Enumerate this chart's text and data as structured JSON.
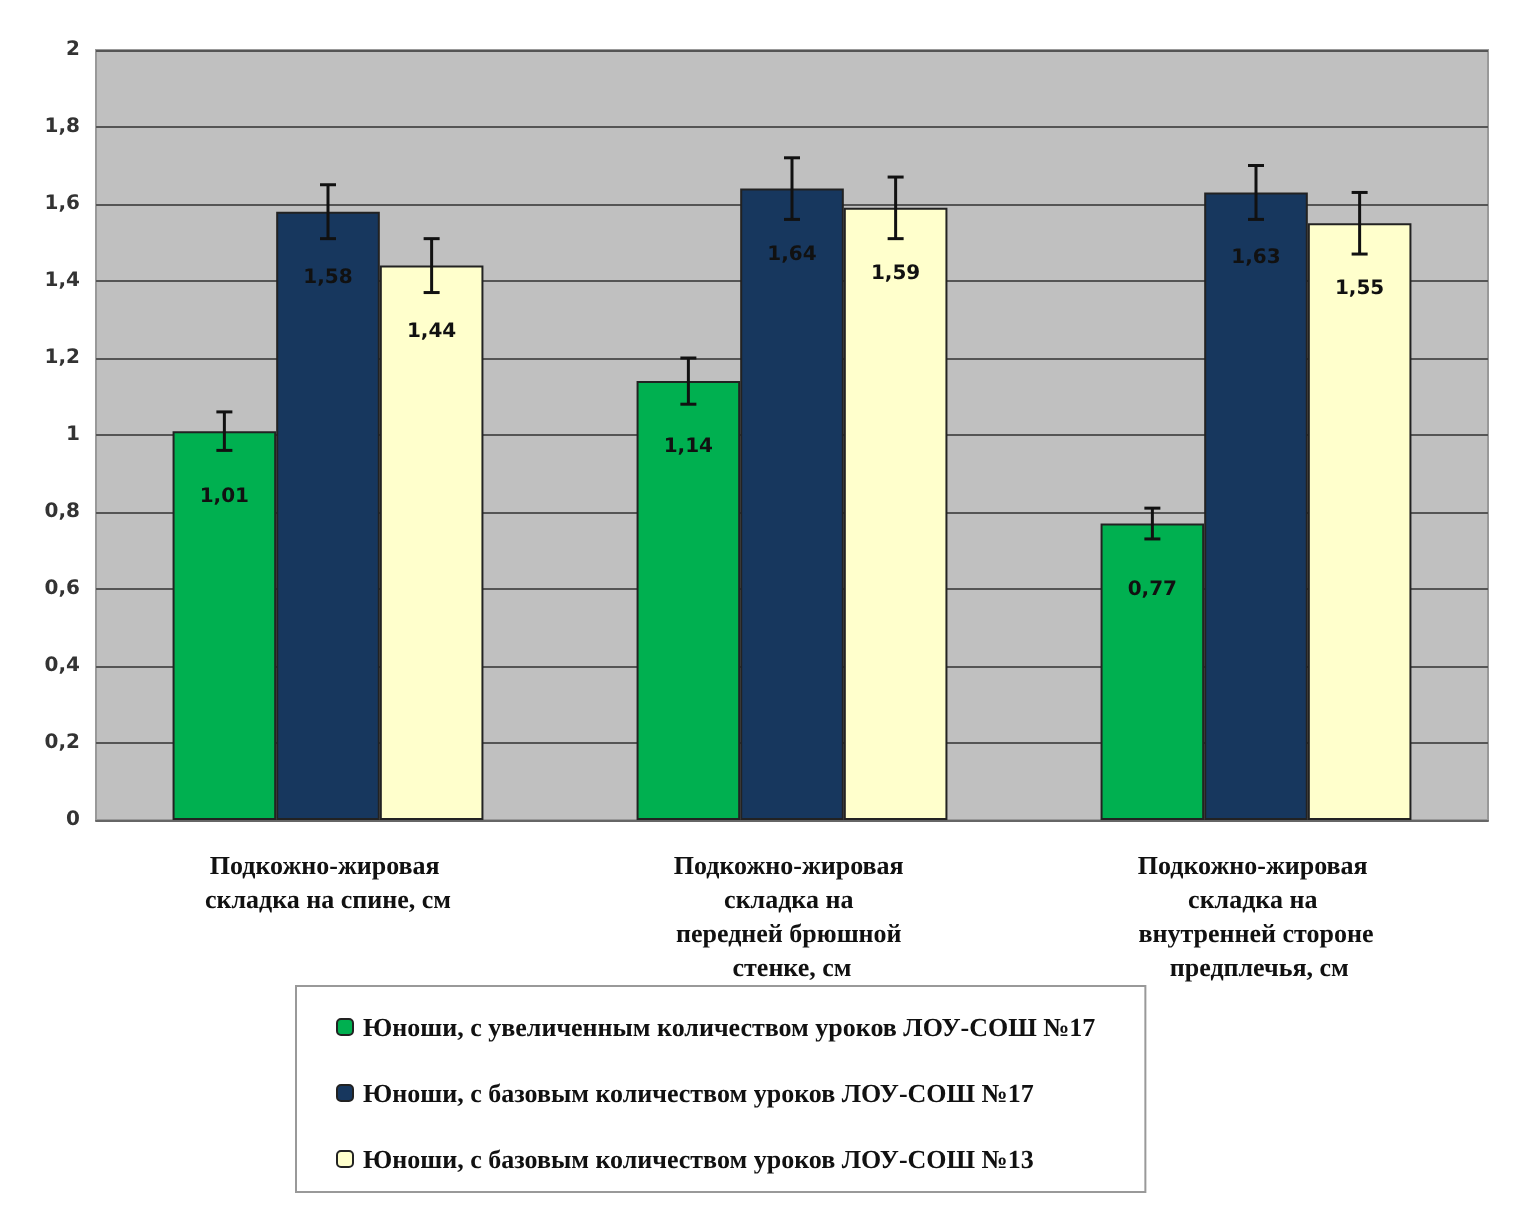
{
  "chart_data": {
    "type": "bar",
    "categories": [
      "Подкожно-жировая складка на спине, см",
      "Подкожно-жировая складка на передней брюшной стенке, см",
      "Подкожно-жировая складка на внутренней стороне предплечья, см"
    ],
    "series": [
      {
        "name": "Юноши, с увеличенным количеством уроков ЛОУ-СОШ №17",
        "color": "#00b050",
        "values": [
          1.01,
          1.14,
          0.77
        ],
        "errors": [
          0.05,
          0.06,
          0.04
        ],
        "value_labels": [
          "1,01",
          "1,14",
          "0,77"
        ]
      },
      {
        "name": "Юноши, с базовым количеством уроков ЛОУ-СОШ №17",
        "color": "#17375e",
        "values": [
          1.58,
          1.64,
          1.63
        ],
        "errors": [
          0.07,
          0.08,
          0.07
        ],
        "value_labels": [
          "1,58",
          "1,64",
          "1,63"
        ]
      },
      {
        "name": "Юноши, с базовым количеством уроков ЛОУ-СОШ №13",
        "color": "#ffffcc",
        "values": [
          1.44,
          1.59,
          1.55
        ],
        "errors": [
          0.07,
          0.08,
          0.08
        ],
        "value_labels": [
          "1,44",
          "1,59",
          "1,55"
        ]
      }
    ],
    "ylim": [
      0,
      2
    ],
    "yticks": [
      {
        "value": 0,
        "label": "0"
      },
      {
        "value": 0.2,
        "label": "0,2"
      },
      {
        "value": 0.4,
        "label": "0,4"
      },
      {
        "value": 0.6,
        "label": "0,6"
      },
      {
        "value": 0.8,
        "label": "0,8"
      },
      {
        "value": 1,
        "label": "1"
      },
      {
        "value": 1.2,
        "label": "1,2"
      },
      {
        "value": 1.4,
        "label": "1,4"
      },
      {
        "value": 1.6,
        "label": "1,6"
      },
      {
        "value": 1.8,
        "label": "1,8"
      },
      {
        "value": 2,
        "label": "2"
      }
    ],
    "grid": "y",
    "legend": "bottom"
  }
}
